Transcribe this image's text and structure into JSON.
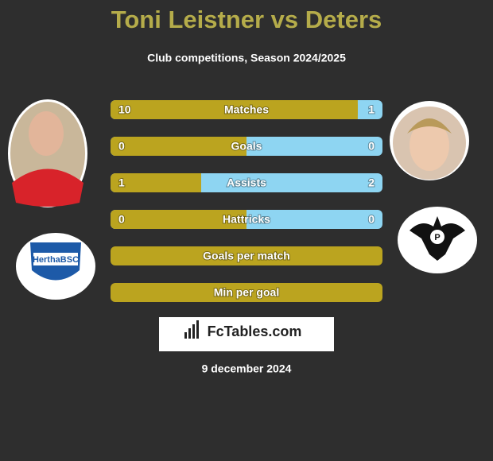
{
  "header": {
    "title": "Toni Leistner vs Deters",
    "subtitle": "Club competitions, Season 2024/2025"
  },
  "rows": [
    {
      "label": "Matches",
      "left": 10,
      "right": 1
    },
    {
      "label": "Goals",
      "left": 0,
      "right": 0
    },
    {
      "label": "Assists",
      "left": 1,
      "right": 2
    },
    {
      "label": "Hattricks",
      "left": 0,
      "right": 0
    },
    {
      "label": "Goals per match"
    },
    {
      "label": "Min per goal"
    }
  ],
  "brand": "FcTables.com",
  "date": "9 december 2024"
}
